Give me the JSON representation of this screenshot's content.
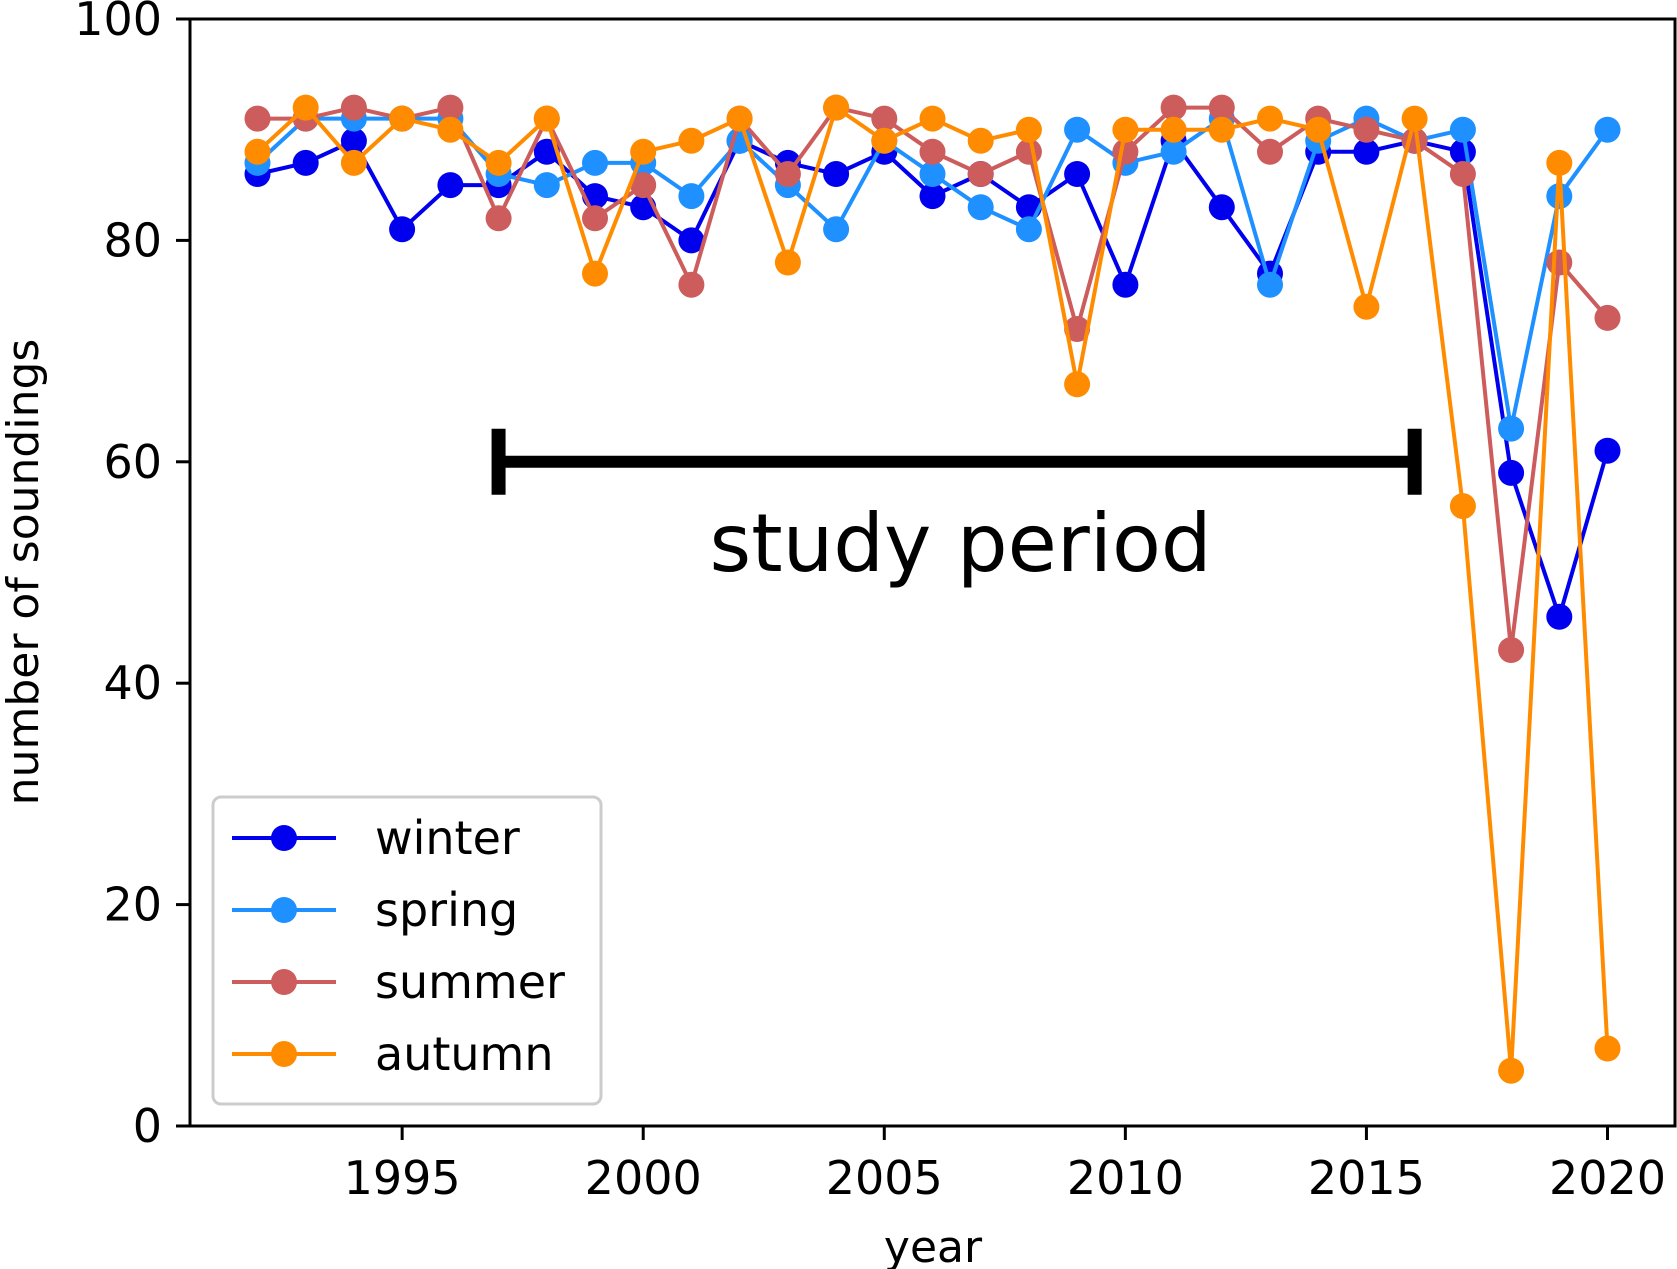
{
  "chart_data": {
    "type": "line",
    "title": "",
    "xlabel": "year",
    "ylabel": "number of soundings",
    "xlim": [
      1990.6,
      2021.4
    ],
    "ylim": [
      0,
      100
    ],
    "xticks": [
      1995,
      2000,
      2005,
      2010,
      2015,
      2020
    ],
    "xtick_labels": [
      "1995",
      "2000",
      "2005",
      "2010",
      "2015",
      "2020"
    ],
    "yticks": [
      0,
      20,
      40,
      60,
      80,
      100
    ],
    "ytick_labels": [
      "0",
      "20",
      "40",
      "60",
      "80",
      "100"
    ],
    "grid": false,
    "legend_position": "lower-left",
    "x": [
      1992,
      1993,
      1994,
      1995,
      1996,
      1997,
      1998,
      1999,
      2000,
      2001,
      2002,
      2003,
      2004,
      2005,
      2006,
      2007,
      2008,
      2009,
      2010,
      2011,
      2012,
      2013,
      2014,
      2015,
      2016,
      2017,
      2018,
      2019,
      2020
    ],
    "series": [
      {
        "name": "winter",
        "color": "#0000ee",
        "values": [
          86,
          87,
          89,
          81,
          85,
          85,
          88,
          84,
          83,
          80,
          89,
          87,
          86,
          88,
          84,
          86,
          83,
          86,
          76,
          89,
          83,
          77,
          88,
          88,
          89,
          88,
          59,
          46,
          61
        ]
      },
      {
        "name": "spring",
        "color": "#1e90ff",
        "values": [
          87,
          91,
          91,
          91,
          91,
          86,
          85,
          87,
          87,
          84,
          89,
          85,
          81,
          89,
          86,
          83,
          81,
          90,
          87,
          88,
          91,
          76,
          89,
          91,
          89,
          90,
          63,
          84,
          90
        ]
      },
      {
        "name": "summer",
        "color": "#cd5c5c",
        "values": [
          91,
          91,
          92,
          91,
          92,
          82,
          91,
          82,
          85,
          76,
          91,
          86,
          92,
          91,
          88,
          86,
          88,
          72,
          88,
          92,
          92,
          88,
          91,
          90,
          89,
          86,
          43,
          78,
          73
        ]
      },
      {
        "name": "autumn",
        "color": "#ff8c00",
        "values": [
          88,
          92,
          87,
          91,
          90,
          87,
          91,
          77,
          88,
          89,
          91,
          78,
          92,
          89,
          91,
          89,
          90,
          67,
          90,
          90,
          90,
          91,
          90,
          74,
          91,
          56,
          5,
          87,
          7
        ]
      }
    ],
    "annotations": [
      {
        "text": "study period",
        "x_start": 1997,
        "x_end": 2016,
        "y": 60
      }
    ]
  }
}
